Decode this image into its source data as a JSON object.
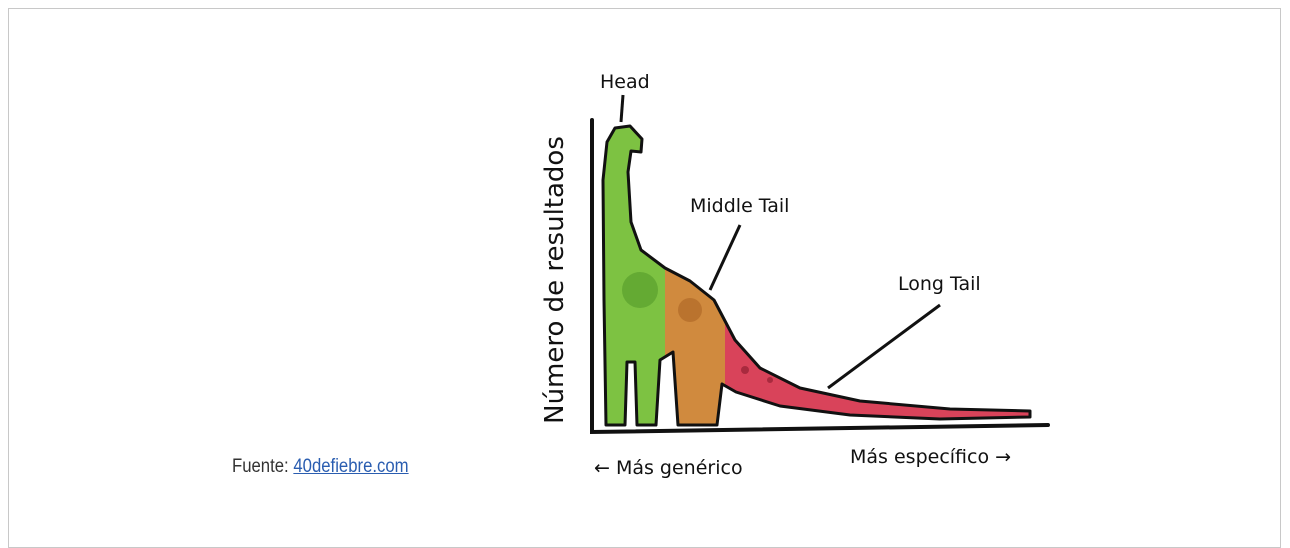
{
  "figure": {
    "head_label": "Head",
    "middle_label": "Middle Tail",
    "long_label": "Long Tail",
    "y_axis_label": "Número de resultados",
    "x_left_label": "← Más genérico",
    "x_right_label": "Más específico →"
  },
  "caption": {
    "prefix": "Fuente:",
    "link": "40defiebre.com"
  }
}
